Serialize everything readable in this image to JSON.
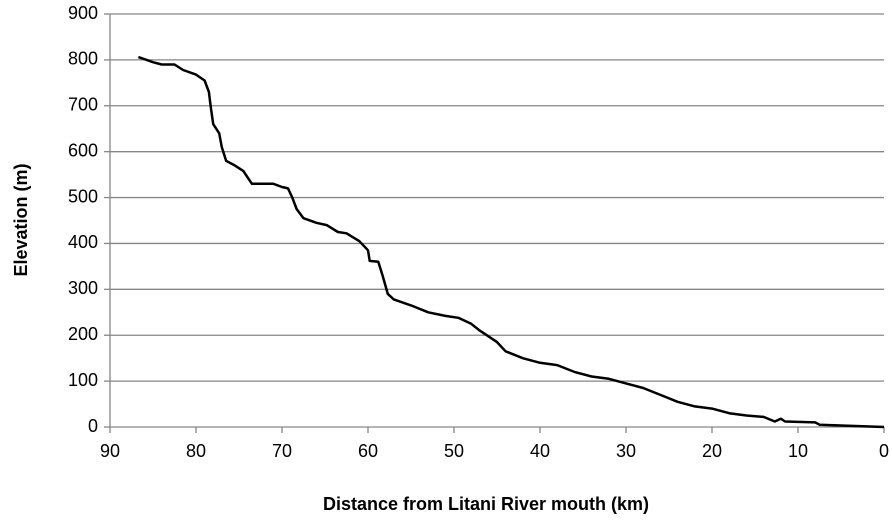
{
  "chart_data": {
    "type": "line",
    "x_label": "Distance from Litani River mouth (km)",
    "y_label": "Elevation (m)",
    "x": [
      86.7,
      85,
      84,
      82.5,
      81.5,
      80,
      79,
      78.5,
      78.3,
      78,
      77.3,
      77,
      76.5,
      75.5,
      74.5,
      73.5,
      71,
      70,
      69.3,
      68.8,
      68.3,
      67.5,
      66,
      64.8,
      63.5,
      62.5,
      61,
      60,
      59.8,
      58.8,
      58.3,
      57.7,
      57,
      55,
      53,
      51,
      49.5,
      48,
      47,
      45,
      44,
      42,
      40,
      38,
      36,
      34,
      32,
      30,
      28,
      26,
      24,
      22,
      20,
      18,
      16,
      14,
      12.7,
      12,
      11.5,
      8,
      7.5,
      0
    ],
    "values": [
      806,
      795,
      790,
      790,
      778,
      768,
      755,
      730,
      700,
      660,
      640,
      610,
      580,
      570,
      558,
      530,
      530,
      523,
      520,
      500,
      475,
      455,
      445,
      440,
      425,
      422,
      405,
      385,
      362,
      360,
      330,
      290,
      278,
      265,
      250,
      242,
      238,
      225,
      210,
      185,
      165,
      150,
      140,
      135,
      120,
      110,
      105,
      95,
      85,
      70,
      55,
      45,
      40,
      30,
      25,
      22,
      12,
      18,
      12,
      10,
      5,
      0
    ],
    "color": "#000000",
    "xlim": [
      90,
      0
    ],
    "xticks": [
      90,
      80,
      70,
      60,
      50,
      40,
      30,
      20,
      10,
      0
    ],
    "ylim": [
      0,
      900
    ],
    "yticks": [
      0,
      100,
      200,
      300,
      400,
      500,
      600,
      700,
      800,
      900
    ],
    "grid": true
  }
}
